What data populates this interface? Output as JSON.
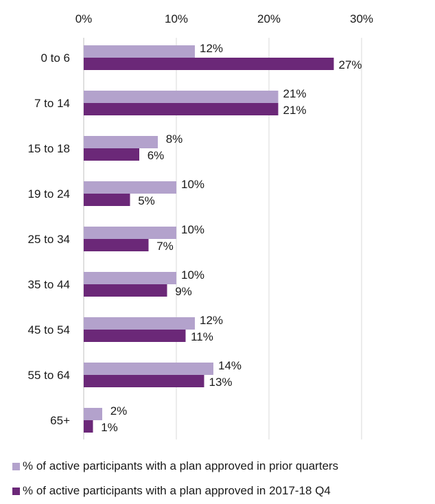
{
  "chart_data": {
    "type": "bar",
    "orientation": "horizontal",
    "categories": [
      "0 to 6",
      "7 to 14",
      "15 to 18",
      "19 to 24",
      "25 to 34",
      "35 to 44",
      "45 to 54",
      "55 to 64",
      "65+"
    ],
    "series": [
      {
        "name": "% of active participants with a plan approved in prior quarters",
        "values": [
          12,
          21,
          8,
          10,
          10,
          10,
          12,
          14,
          2
        ],
        "value_labels": [
          "12%",
          "21%",
          "8%",
          "10%",
          "10%",
          "10%",
          "12%",
          "14%",
          "2%"
        ],
        "color": "#b3a2cc"
      },
      {
        "name": "% of active participants with a plan approved in 2017-18 Q4",
        "values": [
          27,
          21,
          6,
          5,
          7,
          9,
          11,
          13,
          1
        ],
        "value_labels": [
          "27%",
          "21%",
          "6%",
          "5%",
          "7%",
          "9%",
          "11%",
          "13%",
          "1%"
        ],
        "color": "#6b2878"
      }
    ],
    "xlim": [
      0,
      30
    ],
    "x_ticks": [
      0,
      10,
      20,
      30
    ],
    "x_tick_labels": [
      "0%",
      "10%",
      "20%",
      "30%"
    ],
    "x_axis_position": "top",
    "grid": true,
    "legend_position": "bottom"
  }
}
